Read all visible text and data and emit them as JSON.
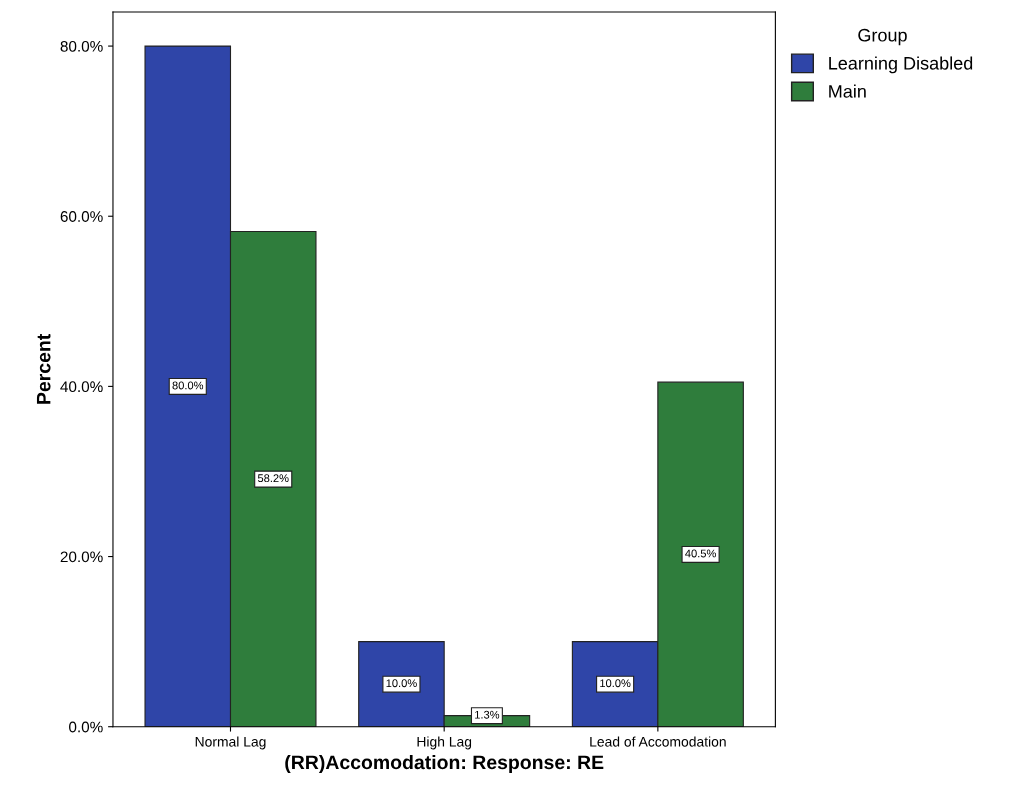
{
  "chart_data": {
    "type": "bar",
    "xlabel": "(RR)Accomodation: Response: RE",
    "ylabel": "Percent",
    "legend_title": "Group",
    "legend": "top right",
    "categories": [
      "Normal Lag",
      "High Lag",
      "Lead of Accomodation"
    ],
    "series": [
      {
        "name": "Learning Disabled",
        "color": "#2f45a8",
        "values": [
          80.0,
          10.0,
          10.0
        ],
        "value_labels": [
          "80.0%",
          "10.0%",
          "10.0%"
        ]
      },
      {
        "name": "Main",
        "color": "#2f7d3c",
        "values": [
          58.2,
          1.3,
          40.5
        ],
        "value_labels": [
          "58.2%",
          "1.3%",
          "40.5%"
        ]
      }
    ],
    "ylim": [
      0,
      84
    ],
    "yticks": [
      {
        "value": 0,
        "label": "0.0%"
      },
      {
        "value": 20,
        "label": "20.0%"
      },
      {
        "value": 40,
        "label": "40.0%"
      },
      {
        "value": 60,
        "label": "60.0%"
      },
      {
        "value": 80,
        "label": "80.0%"
      }
    ],
    "grid": false
  }
}
